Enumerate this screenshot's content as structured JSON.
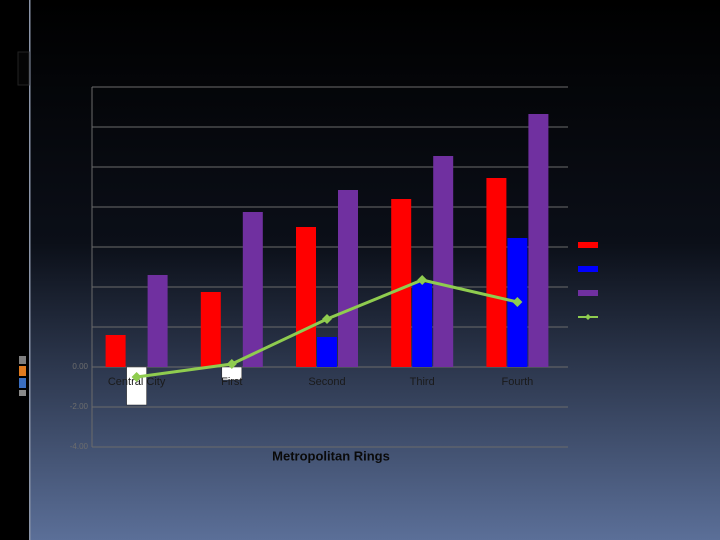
{
  "chart_data": {
    "type": "bar_line",
    "x_label": "Metropolitan Rings",
    "categories": [
      "Central City",
      "First",
      "Second",
      "Third",
      "Fourth"
    ],
    "series": [
      {
        "color": "#ff0000",
        "values": [
          1.6,
          3.75,
          7.0,
          8.4,
          9.45
        ]
      },
      {
        "color": "#0000ff",
        "negative_color": "#ffffff",
        "values": [
          -1.9,
          -0.65,
          1.5,
          4.2,
          6.45
        ]
      },
      {
        "color": "#7030a0",
        "values": [
          4.6,
          7.75,
          8.85,
          10.55,
          12.65
        ]
      },
      {
        "color": "#8fcc4f",
        "type": "line",
        "values": [
          -0.5,
          0.15,
          2.4,
          4.35,
          3.25
        ]
      }
    ],
    "ylim": [
      -4,
      14
    ],
    "yticks": [
      {
        "value": 0,
        "label": "0.00"
      },
      {
        "value": -2,
        "label": "-2.00"
      },
      {
        "value": -4,
        "label": "-4.00"
      }
    ],
    "grid_lines": [
      -4,
      -2,
      0,
      2,
      4,
      6,
      8,
      10,
      12,
      14
    ],
    "grid": true,
    "legend": "right"
  }
}
